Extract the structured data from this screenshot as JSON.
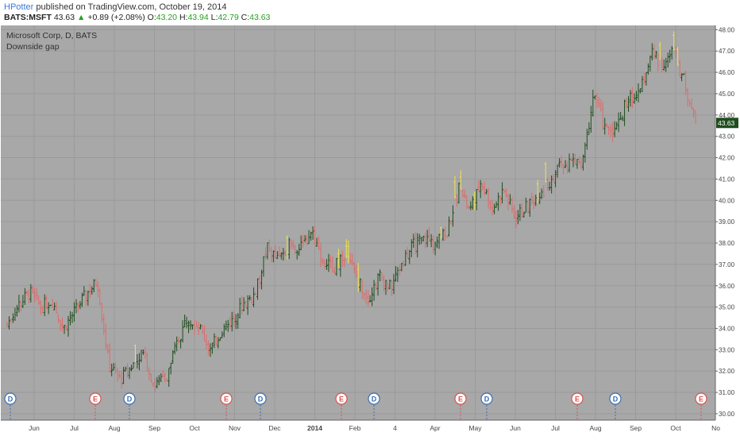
{
  "header": {
    "author": "HPotter",
    "published_text": "published on TradingView.com, October 19, 2014",
    "symbol": "BATS:MSFT",
    "last": "43.63",
    "change_arrow": "▲",
    "change": "+0.89 (+2.08%)",
    "open_label": "O:",
    "open": "43.20",
    "high_label": "H:",
    "high": "43.94",
    "low_label": "L:",
    "low": "42.79",
    "close_label": "C:",
    "close": "43.63"
  },
  "chart_data": {
    "type": "ohlc",
    "title": "Microsoft Corp, D, BATS",
    "subtitle": "Downside gap",
    "ylim": [
      29.7,
      48.2
    ],
    "y_ticks": [
      "30.00",
      "31.00",
      "32.00",
      "33.00",
      "34.00",
      "35.00",
      "36.00",
      "37.00",
      "38.00",
      "39.00",
      "40.00",
      "41.00",
      "42.00",
      "43.00",
      "44.00",
      "45.00",
      "46.00",
      "47.00",
      "48.00"
    ],
    "x_tick_labels": [
      "Jun",
      "Jul",
      "Aug",
      "Sep",
      "Oct",
      "Nov",
      "Dec",
      "2014",
      "Feb",
      "4",
      "Apr",
      "May",
      "Jun",
      "Jul",
      "Aug",
      "Sep",
      "Oct",
      "No"
    ],
    "last_price_label": "43.63",
    "colors": {
      "background": "#a8a8a8",
      "grid": "#9a9a9a",
      "up": "#1e4d1e",
      "down": "#e06a6a",
      "gap": "#f2e24a",
      "last_price_bg": "#1e4d1e"
    },
    "anchors": [
      34.2,
      35.1,
      35.7,
      35.0,
      35.3,
      34.0,
      34.8,
      35.6,
      36.2,
      32.3,
      31.6,
      32.2,
      32.9,
      31.4,
      31.6,
      33.2,
      34.6,
      34.1,
      33.0,
      33.9,
      34.4,
      35.2,
      35.6,
      37.8,
      37.2,
      38.0,
      37.7,
      38.6,
      37.1,
      36.9,
      37.4,
      36.4,
      35.4,
      36.5,
      35.9,
      37.1,
      37.9,
      38.2,
      38.0,
      38.5,
      40.6,
      39.4,
      40.9,
      39.6,
      40.5,
      39.2,
      39.7,
      40.2,
      40.8,
      41.6,
      41.8,
      41.7,
      45.1,
      43.3,
      43.4,
      44.8,
      44.9,
      46.9,
      46.4,
      47.0,
      45.6,
      43.6
    ],
    "events": [
      {
        "label": "D",
        "type": "dividend"
      },
      {
        "label": "E",
        "type": "earnings"
      },
      {
        "label": "D",
        "type": "dividend"
      },
      {
        "label": "E",
        "type": "earnings"
      },
      {
        "label": "D",
        "type": "dividend"
      },
      {
        "label": "E",
        "type": "earnings"
      },
      {
        "label": "D",
        "type": "dividend"
      },
      {
        "label": "E",
        "type": "earnings"
      },
      {
        "label": "D",
        "type": "dividend"
      },
      {
        "label": "E",
        "type": "earnings"
      },
      {
        "label": "D",
        "type": "dividend"
      },
      {
        "label": "E",
        "type": "earnings"
      }
    ]
  }
}
